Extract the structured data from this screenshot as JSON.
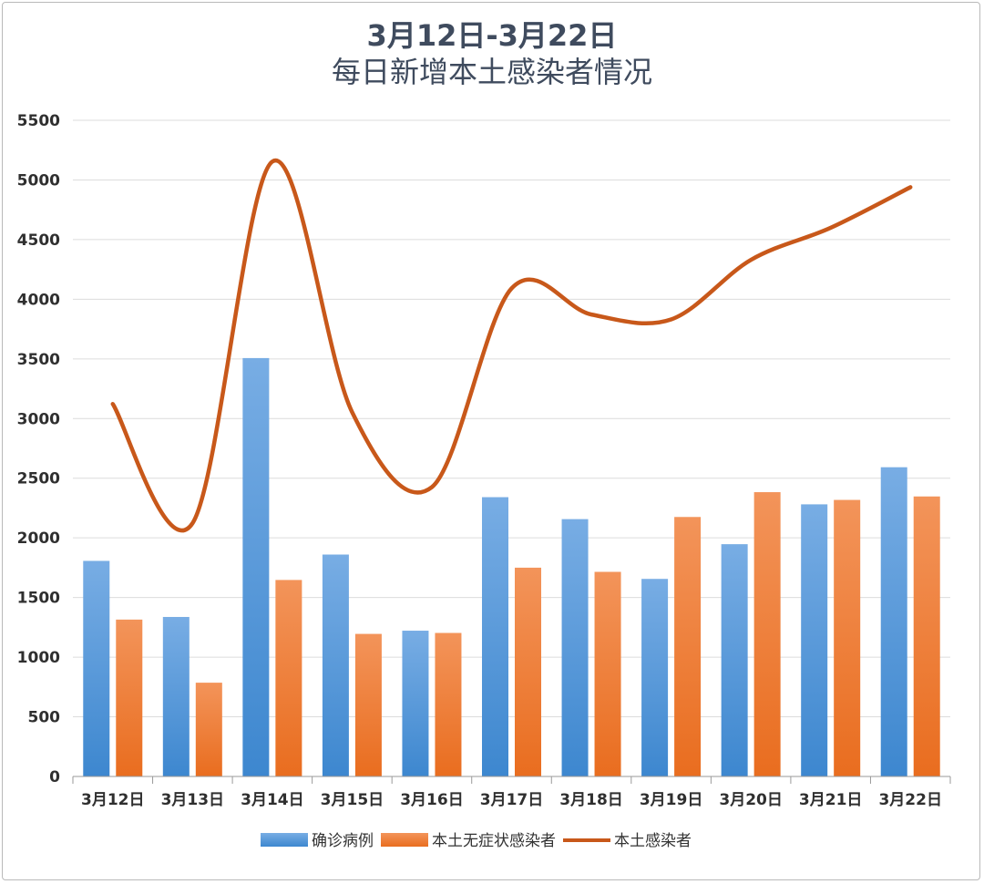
{
  "chart_data": {
    "type": "bar",
    "title_line1": "3月12日-3月22日",
    "title_line2": "每日新增本土感染者情况",
    "xlabel": "",
    "ylabel": "",
    "ylim": [
      0,
      5500
    ],
    "yticks": [
      0,
      500,
      1000,
      1500,
      2000,
      2500,
      3000,
      3500,
      4000,
      4500,
      5000,
      5500
    ],
    "grid": true,
    "legend_position": "bottom",
    "categories": [
      "3月12日",
      "3月13日",
      "3月14日",
      "3月15日",
      "3月16日",
      "3月17日",
      "3月18日",
      "3月19日",
      "3月20日",
      "3月21日",
      "3月22日"
    ],
    "series": [
      {
        "name": "确诊病例",
        "type": "bar",
        "color": "#4a90d6",
        "values": [
          1807,
          1337,
          3507,
          1860,
          1222,
          2341,
          2157,
          1656,
          1947,
          2281,
          2592
        ]
      },
      {
        "name": "本土无症状感染者",
        "type": "bar",
        "color": "#ee7a2c",
        "values": [
          1315,
          786,
          1647,
          1195,
          1203,
          1750,
          1715,
          2175,
          2383,
          2318,
          2347
        ]
      },
      {
        "name": "本土感染者",
        "type": "line",
        "color": "#c8581a",
        "values": [
          3122,
          2123,
          5154,
          3055,
          2425,
          4091,
          3872,
          3831,
          4330,
          4599,
          4939
        ]
      }
    ]
  }
}
